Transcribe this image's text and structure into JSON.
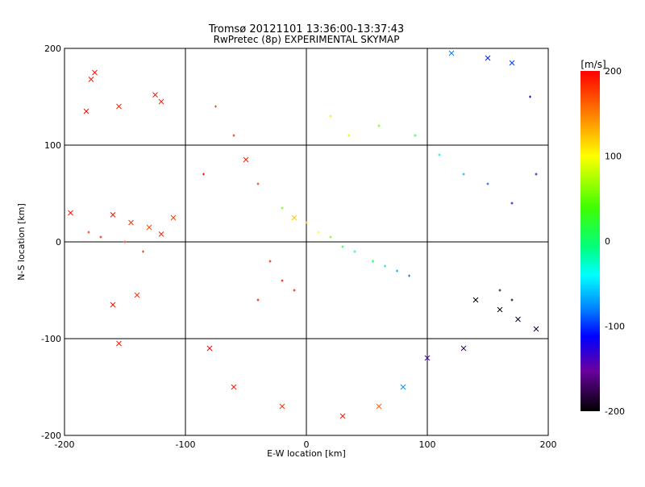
{
  "chart_data": {
    "type": "scatter",
    "title": "Tromsø 20121101 13:36:00-13:37:43",
    "subtitle": "RwPretec (8p) EXPERIMENTAL SKYMAP",
    "xlabel": "E-W location [km]",
    "ylabel": "N-S location [km]",
    "xlim": [
      -200,
      200
    ],
    "ylim": [
      -200,
      200
    ],
    "xticks": [
      -200,
      -100,
      0,
      100,
      200
    ],
    "yticks": [
      -200,
      -100,
      0,
      100,
      200
    ],
    "grid": true,
    "colorbar": {
      "label": "[m/s]",
      "min": -200,
      "max": 200,
      "ticks": [
        200,
        100,
        0,
        -100,
        -200
      ],
      "colormap": "rainbow (black-purple-blue-cyan-green-yellow-red)"
    },
    "marker_types": [
      "+",
      "x"
    ],
    "points": [
      [
        -175,
        175,
        195,
        "x"
      ],
      [
        -178,
        168,
        190,
        "x"
      ],
      [
        -182,
        135,
        198,
        "x"
      ],
      [
        -155,
        140,
        186,
        "x"
      ],
      [
        -125,
        152,
        192,
        "x"
      ],
      [
        -120,
        145,
        188,
        "x"
      ],
      [
        -195,
        30,
        190,
        "x"
      ],
      [
        -160,
        28,
        196,
        "x"
      ],
      [
        -145,
        20,
        180,
        "x"
      ],
      [
        -130,
        15,
        170,
        "x"
      ],
      [
        -120,
        8,
        185,
        "x"
      ],
      [
        -110,
        25,
        175,
        "x"
      ],
      [
        -140,
        -55,
        180,
        "x"
      ],
      [
        -155,
        -105,
        190,
        "x"
      ],
      [
        -160,
        -65,
        195,
        "x"
      ],
      [
        -180,
        10,
        180,
        "+"
      ],
      [
        -170,
        5,
        190,
        "+"
      ],
      [
        -150,
        0,
        185,
        "+"
      ],
      [
        -135,
        -10,
        178,
        "+"
      ],
      [
        -85,
        70,
        195,
        "+"
      ],
      [
        -75,
        140,
        170,
        "+"
      ],
      [
        -60,
        110,
        185,
        "+"
      ],
      [
        -50,
        85,
        190,
        "x"
      ],
      [
        -40,
        60,
        180,
        "+"
      ],
      [
        -20,
        35,
        60,
        "+"
      ],
      [
        -10,
        25,
        120,
        "x"
      ],
      [
        0,
        20,
        130,
        "+"
      ],
      [
        10,
        10,
        100,
        "+"
      ],
      [
        20,
        5,
        60,
        "+"
      ],
      [
        30,
        -5,
        30,
        "+"
      ],
      [
        40,
        -10,
        10,
        "+"
      ],
      [
        55,
        -20,
        20,
        "+"
      ],
      [
        65,
        -25,
        -10,
        "+"
      ],
      [
        75,
        -30,
        -40,
        "+"
      ],
      [
        85,
        -35,
        -60,
        "+"
      ],
      [
        20,
        130,
        110,
        "+"
      ],
      [
        35,
        110,
        90,
        "+"
      ],
      [
        60,
        120,
        60,
        "+"
      ],
      [
        90,
        110,
        20,
        "+"
      ],
      [
        110,
        90,
        -10,
        "+"
      ],
      [
        130,
        70,
        -40,
        "+"
      ],
      [
        150,
        60,
        -70,
        "+"
      ],
      [
        170,
        40,
        -110,
        "+"
      ],
      [
        190,
        70,
        -130,
        "+"
      ],
      [
        185,
        150,
        -100,
        "+"
      ],
      [
        170,
        185,
        -80,
        "x"
      ],
      [
        150,
        190,
        -90,
        "x"
      ],
      [
        120,
        195,
        -60,
        "x"
      ],
      [
        140,
        -60,
        -200,
        "x"
      ],
      [
        160,
        -70,
        -195,
        "x"
      ],
      [
        175,
        -80,
        -190,
        "x"
      ],
      [
        190,
        -90,
        -185,
        "x"
      ],
      [
        160,
        -50,
        -180,
        "+"
      ],
      [
        170,
        -60,
        -200,
        "+"
      ],
      [
        130,
        -110,
        -170,
        "x"
      ],
      [
        100,
        -120,
        -140,
        "x"
      ],
      [
        80,
        -150,
        -50,
        "x"
      ],
      [
        60,
        -170,
        160,
        "x"
      ],
      [
        30,
        -180,
        190,
        "x"
      ],
      [
        -20,
        -170,
        180,
        "x"
      ],
      [
        -60,
        -150,
        190,
        "x"
      ],
      [
        -80,
        -110,
        200,
        "x"
      ],
      [
        -40,
        -60,
        195,
        "+"
      ],
      [
        -20,
        -40,
        200,
        "+"
      ],
      [
        -30,
        -20,
        190,
        "+"
      ],
      [
        -10,
        -50,
        198,
        "+"
      ]
    ]
  }
}
